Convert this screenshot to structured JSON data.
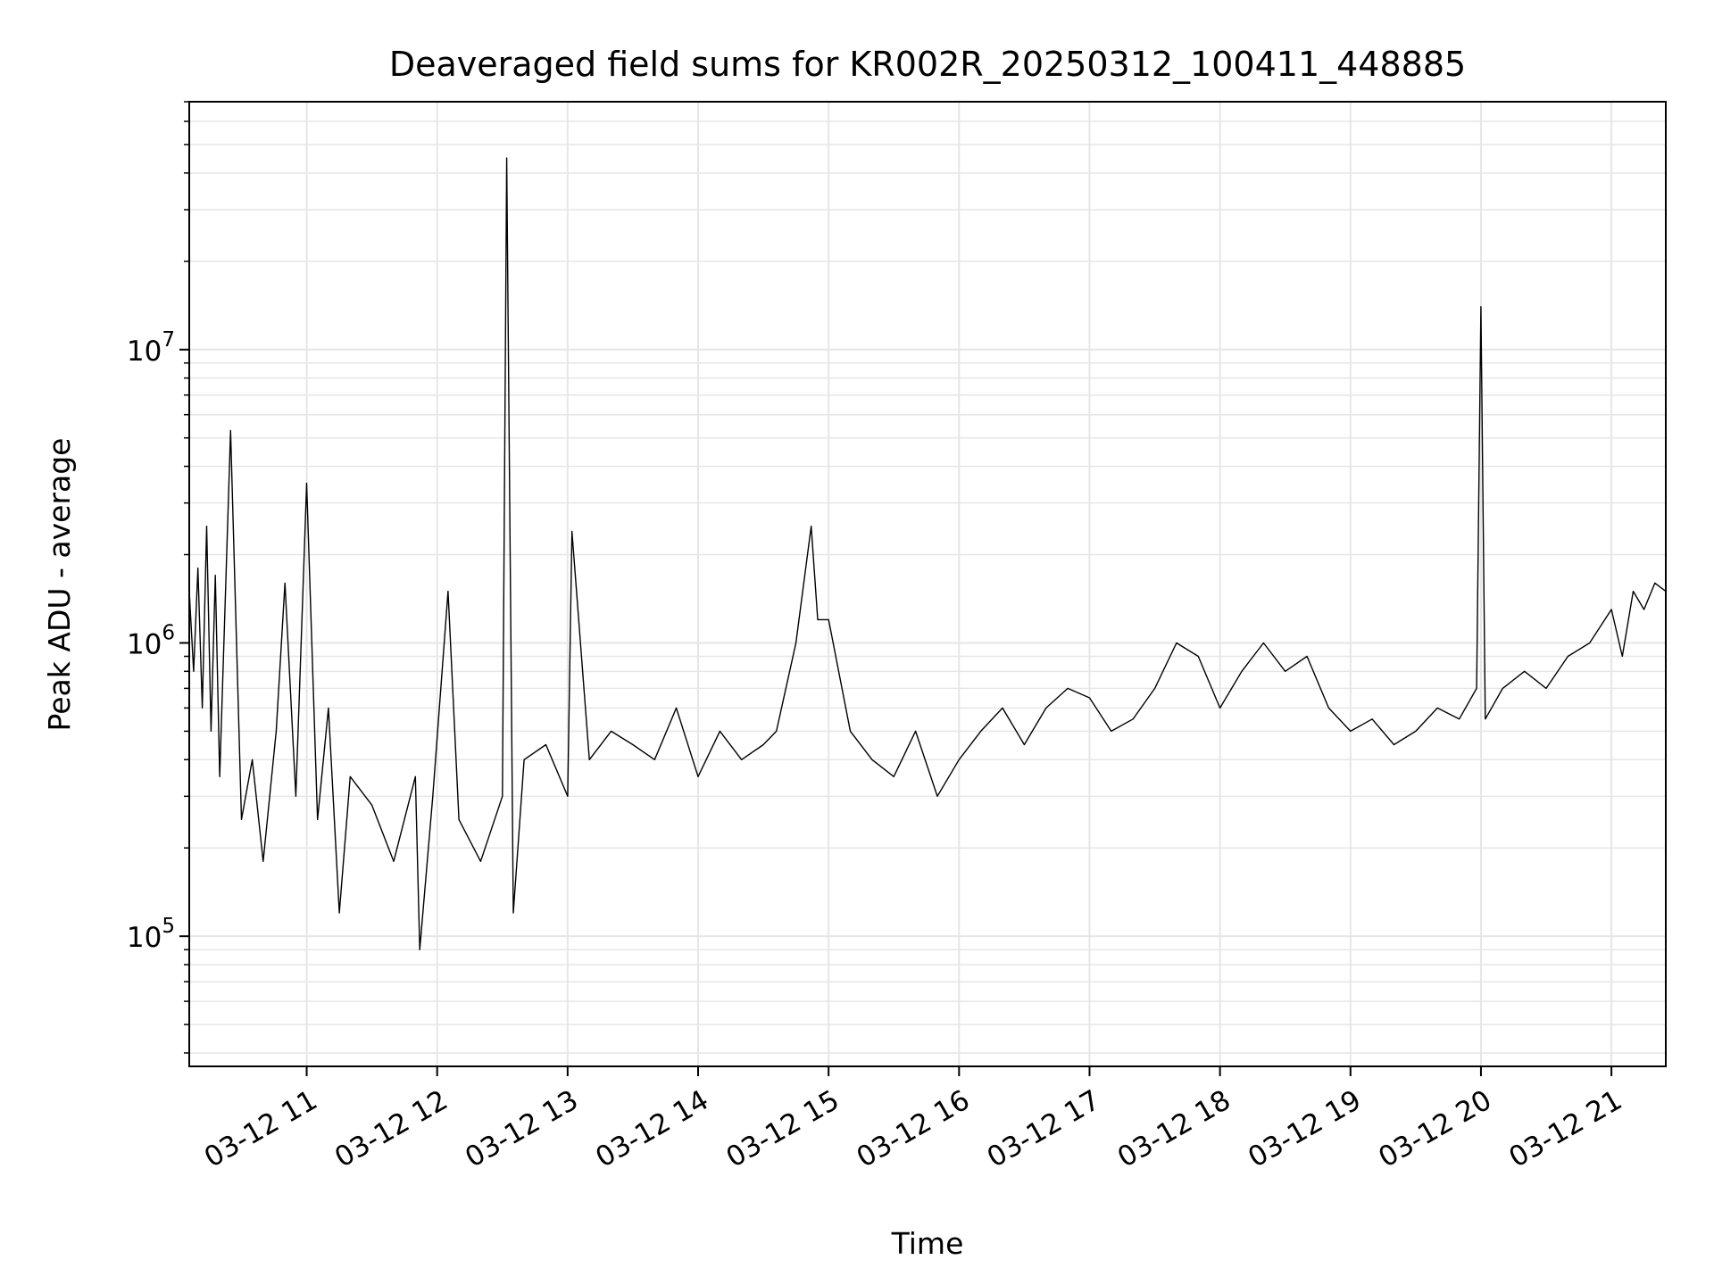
{
  "chart_data": {
    "type": "line",
    "title": "Deaveraged field sums for KR002R_20250312_100411_448885",
    "xlabel": "Time",
    "ylabel": "Peak ADU - average",
    "yscale": "log",
    "grid": true,
    "x_tick_labels": [
      "03-12 11",
      "03-12 12",
      "03-12 13",
      "03-12 14",
      "03-12 15",
      "03-12 16",
      "03-12 17",
      "03-12 18",
      "03-12 19",
      "03-12 20",
      "03-12 21"
    ],
    "y_tick_labels": [
      {
        "base": "10",
        "exp": "5",
        "value": 100000
      },
      {
        "base": "10",
        "exp": "6",
        "value": 1000000
      },
      {
        "base": "10",
        "exp": "7",
        "value": 10000000
      }
    ],
    "xlim": [
      "2025-03-12 10:06",
      "2025-03-12 21:25"
    ],
    "ylim": [
      36000,
      70000000
    ],
    "line_color": "#000000",
    "series": [
      {
        "x": [
          "2025-03-12 10:06",
          "2025-03-12 10:08",
          "2025-03-12 10:10",
          "2025-03-12 10:12",
          "2025-03-12 10:14",
          "2025-03-12 10:16",
          "2025-03-12 10:18",
          "2025-03-12 10:20",
          "2025-03-12 10:25",
          "2025-03-12 10:30",
          "2025-03-12 10:35",
          "2025-03-12 10:40",
          "2025-03-12 10:46",
          "2025-03-12 10:50",
          "2025-03-12 10:55",
          "2025-03-12 11:00",
          "2025-03-12 11:05",
          "2025-03-12 11:10",
          "2025-03-12 11:15",
          "2025-03-12 11:20",
          "2025-03-12 11:30",
          "2025-03-12 11:40",
          "2025-03-12 11:50",
          "2025-03-12 11:52",
          "2025-03-12 11:58",
          "2025-03-12 12:05",
          "2025-03-12 12:10",
          "2025-03-12 12:20",
          "2025-03-12 12:30",
          "2025-03-12 12:32",
          "2025-03-12 12:35",
          "2025-03-12 12:40",
          "2025-03-12 12:50",
          "2025-03-12 13:00",
          "2025-03-12 13:02",
          "2025-03-12 13:10",
          "2025-03-12 13:20",
          "2025-03-12 13:30",
          "2025-03-12 13:40",
          "2025-03-12 13:50",
          "2025-03-12 14:00",
          "2025-03-12 14:10",
          "2025-03-12 14:20",
          "2025-03-12 14:30",
          "2025-03-12 14:36",
          "2025-03-12 14:45",
          "2025-03-12 14:52",
          "2025-03-12 14:55",
          "2025-03-12 15:00",
          "2025-03-12 15:10",
          "2025-03-12 15:20",
          "2025-03-12 15:30",
          "2025-03-12 15:40",
          "2025-03-12 15:50",
          "2025-03-12 16:00",
          "2025-03-12 16:10",
          "2025-03-12 16:20",
          "2025-03-12 16:30",
          "2025-03-12 16:40",
          "2025-03-12 16:50",
          "2025-03-12 17:00",
          "2025-03-12 17:10",
          "2025-03-12 17:20",
          "2025-03-12 17:30",
          "2025-03-12 17:40",
          "2025-03-12 17:50",
          "2025-03-12 18:00",
          "2025-03-12 18:10",
          "2025-03-12 18:20",
          "2025-03-12 18:30",
          "2025-03-12 18:40",
          "2025-03-12 18:50",
          "2025-03-12 19:00",
          "2025-03-12 19:10",
          "2025-03-12 19:20",
          "2025-03-12 19:30",
          "2025-03-12 19:40",
          "2025-03-12 19:50",
          "2025-03-12 19:58",
          "2025-03-12 20:00",
          "2025-03-12 20:02",
          "2025-03-12 20:10",
          "2025-03-12 20:20",
          "2025-03-12 20:30",
          "2025-03-12 20:40",
          "2025-03-12 20:50",
          "2025-03-12 21:00",
          "2025-03-12 21:05",
          "2025-03-12 21:10",
          "2025-03-12 21:15",
          "2025-03-12 21:20",
          "2025-03-12 21:25"
        ],
        "values": [
          1500000,
          800000,
          1800000,
          600000,
          2500000,
          500000,
          1700000,
          350000,
          5300000,
          250000,
          400000,
          180000,
          500000,
          1600000,
          300000,
          3500000,
          250000,
          600000,
          120000,
          350000,
          280000,
          180000,
          350000,
          90000,
          300000,
          1500000,
          250000,
          180000,
          300000,
          45000000,
          120000,
          400000,
          450000,
          300000,
          2400000,
          400000,
          500000,
          450000,
          400000,
          600000,
          350000,
          500000,
          400000,
          450000,
          500000,
          1000000,
          2500000,
          1200000,
          1200000,
          500000,
          400000,
          350000,
          500000,
          300000,
          400000,
          500000,
          600000,
          450000,
          600000,
          700000,
          650000,
          500000,
          550000,
          700000,
          1000000,
          900000,
          600000,
          800000,
          1000000,
          800000,
          900000,
          600000,
          500000,
          550000,
          450000,
          500000,
          600000,
          550000,
          700000,
          14000000,
          550000,
          700000,
          800000,
          700000,
          900000,
          1000000,
          1300000,
          900000,
          1500000,
          1300000,
          1600000,
          1500000
        ]
      }
    ]
  }
}
